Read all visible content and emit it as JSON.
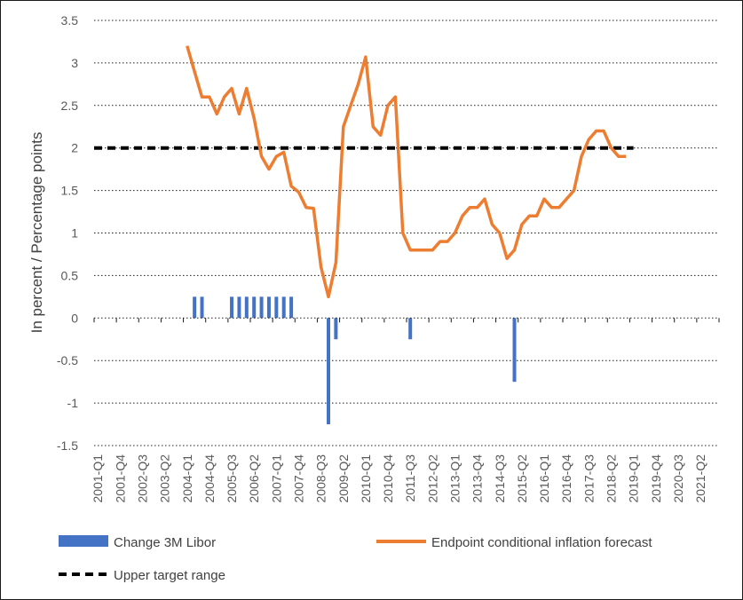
{
  "chart_data": {
    "type": "bar+line",
    "ylabel": "In percent / Percentage points",
    "ylim": [
      -1.5,
      3.5
    ],
    "yticks": [
      3.5,
      3,
      2.5,
      2,
      1.5,
      1,
      0.5,
      0,
      -0.5,
      -1,
      -1.5
    ],
    "grid": "horizontal dotted",
    "x_start": "2001-Q1",
    "x_end": "2021-Q4",
    "xtick_labels": [
      "2001-Q1",
      "2001-Q4",
      "2002-Q3",
      "2003-Q2",
      "2004-Q1",
      "2004-Q4",
      "2005-Q3",
      "2006-Q2",
      "2007-Q1",
      "2007-Q4",
      "2008-Q3",
      "2009-Q2",
      "2010-Q1",
      "2010-Q4",
      "2011-Q3",
      "2012-Q2",
      "2013-Q1",
      "2013-Q4",
      "2014-Q3",
      "2015-Q2",
      "2016-Q1",
      "2016-Q4",
      "2017-Q3",
      "2018-Q2",
      "2019-Q1",
      "2019-Q4",
      "2020-Q3",
      "2021-Q2"
    ],
    "series": [
      {
        "name": "Change 3M Libor",
        "type": "bar",
        "color": "#4472C4",
        "points": [
          {
            "x": "2004-Q2",
            "y": 0.25
          },
          {
            "x": "2004-Q3",
            "y": 0.25
          },
          {
            "x": "2005-Q3",
            "y": 0.25
          },
          {
            "x": "2005-Q4",
            "y": 0.25
          },
          {
            "x": "2006-Q1",
            "y": 0.25
          },
          {
            "x": "2006-Q2",
            "y": 0.25
          },
          {
            "x": "2006-Q3",
            "y": 0.25
          },
          {
            "x": "2006-Q4",
            "y": 0.25
          },
          {
            "x": "2007-Q1",
            "y": 0.25
          },
          {
            "x": "2007-Q2",
            "y": 0.25
          },
          {
            "x": "2007-Q3",
            "y": 0.25
          },
          {
            "x": "2008-Q4",
            "y": -1.25
          },
          {
            "x": "2009-Q1",
            "y": -0.25
          },
          {
            "x": "2011-Q3",
            "y": -0.25
          },
          {
            "x": "2015-Q1",
            "y": -0.75
          }
        ]
      },
      {
        "name": "Endpoint conditional inflation forecast",
        "type": "line",
        "color": "#ED7D31",
        "x": [
          "2004-Q1",
          "2004-Q2",
          "2004-Q3",
          "2004-Q4",
          "2005-Q1",
          "2005-Q2",
          "2005-Q3",
          "2005-Q4",
          "2006-Q1",
          "2006-Q2",
          "2006-Q3",
          "2006-Q4",
          "2007-Q1",
          "2007-Q2",
          "2007-Q3",
          "2007-Q4",
          "2008-Q1",
          "2008-Q2",
          "2008-Q3",
          "2008-Q4",
          "2009-Q1",
          "2009-Q2",
          "2009-Q3",
          "2009-Q4",
          "2010-Q1",
          "2010-Q2",
          "2010-Q3",
          "2010-Q4",
          "2011-Q1",
          "2011-Q2",
          "2011-Q3",
          "2011-Q4",
          "2012-Q1",
          "2012-Q2",
          "2012-Q3",
          "2012-Q4",
          "2013-Q1",
          "2013-Q2",
          "2013-Q3",
          "2013-Q4",
          "2014-Q1",
          "2014-Q2",
          "2014-Q3",
          "2014-Q4",
          "2015-Q1",
          "2015-Q2",
          "2015-Q3",
          "2015-Q4",
          "2016-Q1",
          "2016-Q2",
          "2016-Q3",
          "2016-Q4",
          "2017-Q1",
          "2017-Q2",
          "2017-Q3",
          "2017-Q4",
          "2018-Q1",
          "2018-Q2",
          "2018-Q3",
          "2018-Q4"
        ],
        "y": [
          3.2,
          2.9,
          2.6,
          2.6,
          2.4,
          2.6,
          2.7,
          2.4,
          2.7,
          2.35,
          1.9,
          1.75,
          1.9,
          1.95,
          1.55,
          1.48,
          1.3,
          1.29,
          0.6,
          0.25,
          0.65,
          2.25,
          2.5,
          2.75,
          3.07,
          2.25,
          2.15,
          2.5,
          2.6,
          1.0,
          0.8,
          0.8,
          0.8,
          0.8,
          0.9,
          0.9,
          1.0,
          1.2,
          1.3,
          1.3,
          1.4,
          1.1,
          1.0,
          0.7,
          0.8,
          1.1,
          1.2,
          1.2,
          1.4,
          1.3,
          1.3,
          1.4,
          1.5,
          1.9,
          2.1,
          2.2,
          2.2,
          2.0,
          1.9,
          1.9
        ]
      },
      {
        "name": "Upper target range",
        "type": "line",
        "style": "dashed",
        "color": "#000000",
        "x": [
          "2001-Q1",
          "2019-Q1"
        ],
        "y": [
          2,
          2
        ]
      }
    ],
    "legend": {
      "placement": "bottom",
      "items": [
        {
          "label": "Change 3M Libor",
          "symbol": "bar",
          "color": "#4472C4"
        },
        {
          "label": "Endpoint conditional inflation forecast",
          "symbol": "line",
          "color": "#ED7D31"
        },
        {
          "label": "Upper target range",
          "symbol": "dashed-line",
          "color": "#000000"
        }
      ]
    }
  }
}
